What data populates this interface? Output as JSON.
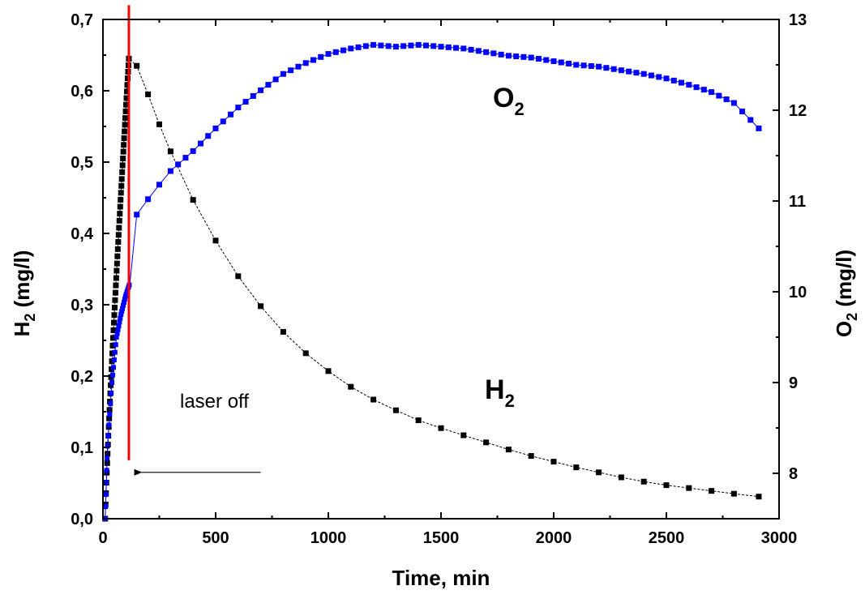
{
  "chart_data": {
    "type": "scatter",
    "title": "",
    "xlabel": "Time, min",
    "ylabel": {
      "main": "H",
      "sub": "2",
      "rest": " (mg/l)"
    },
    "y2label": {
      "main": "O",
      "sub": "2",
      "rest": " (mg/l)"
    },
    "xlim": [
      0,
      3000
    ],
    "ylim": [
      0,
      0.7
    ],
    "y2lim": [
      7.5,
      13
    ],
    "xticks": [
      0,
      500,
      1000,
      1500,
      2000,
      2500,
      3000
    ],
    "xtick_labels": [
      "0",
      "500",
      "1000",
      "1500",
      "2000",
      "2500",
      "3000"
    ],
    "yticks": [
      0,
      0.1,
      0.2,
      0.3,
      0.4,
      0.5,
      0.6,
      0.7
    ],
    "ytick_labels": [
      "0,0",
      "0,1",
      "0,2",
      "0,3",
      "0,4",
      "0,5",
      "0,6",
      "0,7"
    ],
    "y2ticks": [
      8,
      9,
      10,
      11,
      12,
      13
    ],
    "y2tick_labels": [
      "8",
      "9",
      "10",
      "11",
      "12",
      "13"
    ],
    "grid": false,
    "series": [
      {
        "name": "H2",
        "label": {
          "main": "H",
          "sub": "2"
        },
        "axis": "left",
        "color": "#000000",
        "marker": "square",
        "rise": {
          "x_start": 10,
          "x_end": 115,
          "y_start": 0.0,
          "y_end": 0.645
        },
        "decay": {
          "x": [
            115,
            150,
            200,
            250,
            300,
            400,
            500,
            600,
            700,
            800,
            900,
            1000,
            1100,
            1200,
            1300,
            1400,
            1500,
            1600,
            1700,
            1800,
            1900,
            2000,
            2100,
            2200,
            2300,
            2400,
            2500,
            2600,
            2700,
            2800,
            2910
          ],
          "y": [
            0.645,
            0.635,
            0.595,
            0.553,
            0.515,
            0.447,
            0.39,
            0.34,
            0.298,
            0.262,
            0.232,
            0.207,
            0.185,
            0.167,
            0.152,
            0.138,
            0.127,
            0.117,
            0.107,
            0.097,
            0.088,
            0.08,
            0.072,
            0.065,
            0.058,
            0.052,
            0.047,
            0.043,
            0.039,
            0.035,
            0.031
          ]
        }
      },
      {
        "name": "O2",
        "label": {
          "main": "O",
          "sub": "2"
        },
        "axis": "right",
        "color": "#0000ff",
        "marker": "square",
        "rise": {
          "x": [
            10,
            20,
            40,
            60,
            80,
            100,
            120
          ],
          "y": [
            7.5,
            8.3,
            9.0,
            9.5,
            9.75,
            9.95,
            10.1
          ]
        },
        "x": [
          150,
          200,
          250,
          300,
          400,
          500,
          600,
          700,
          800,
          900,
          1000,
          1100,
          1200,
          1300,
          1400,
          1500,
          1600,
          1700,
          1800,
          1900,
          2000,
          2100,
          2200,
          2300,
          2400,
          2500,
          2600,
          2700,
          2800,
          2910
        ],
        "y": [
          10.85,
          11.02,
          11.18,
          11.33,
          11.55,
          11.8,
          12.03,
          12.22,
          12.4,
          12.52,
          12.62,
          12.68,
          12.72,
          12.7,
          12.72,
          12.7,
          12.68,
          12.64,
          12.6,
          12.58,
          12.54,
          12.5,
          12.48,
          12.44,
          12.4,
          12.35,
          12.28,
          12.2,
          12.08,
          11.8
        ]
      }
    ],
    "annotations": [
      {
        "type": "vline",
        "x": 115,
        "y_from": 0.082,
        "y_to": 0.72,
        "color": "#ff0000"
      },
      {
        "type": "arrow",
        "text": "laser off",
        "x_from": 700,
        "x_to": 135,
        "y": 0.065
      }
    ]
  }
}
